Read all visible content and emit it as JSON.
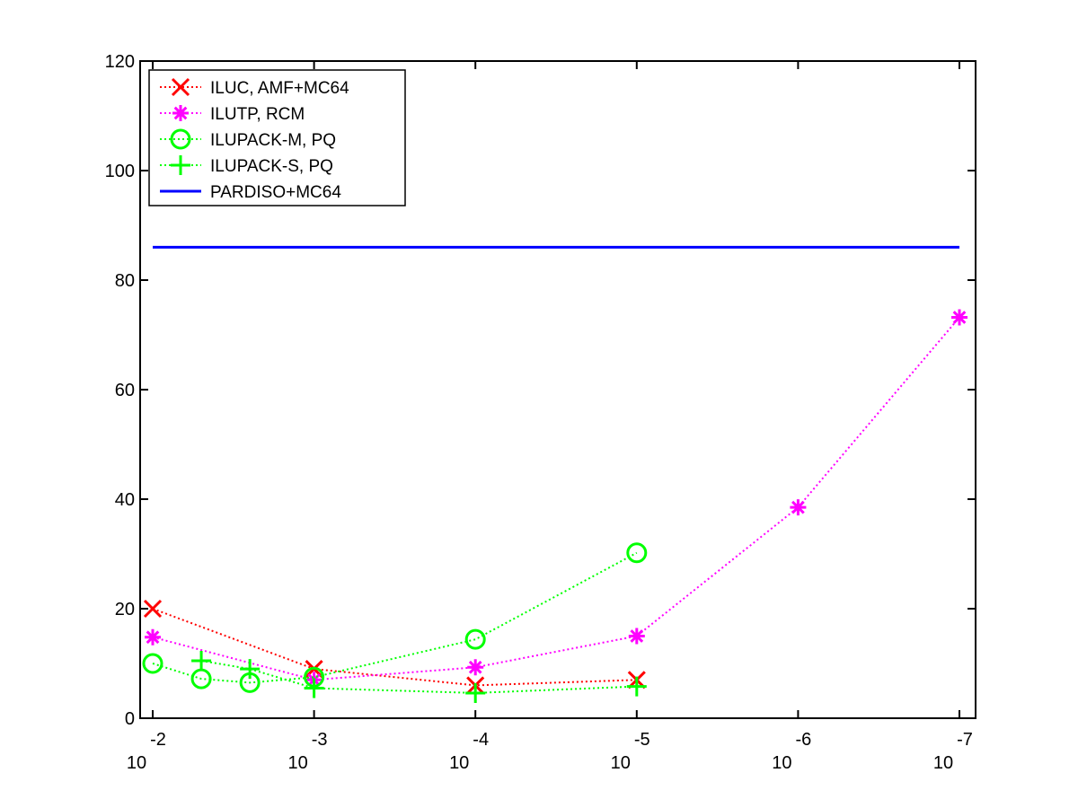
{
  "chart_data": {
    "type": "line",
    "title": "",
    "xlabel": "",
    "ylabel": "",
    "x_scale": "log-reversed",
    "xlim": [
      0.01,
      1e-07
    ],
    "ylim": [
      0,
      120
    ],
    "y_ticks": [
      0,
      20,
      40,
      60,
      80,
      100,
      120
    ],
    "x_ticks": [
      {
        "value": 0.01,
        "base": "10",
        "exp": "-2"
      },
      {
        "value": 0.001,
        "base": "10",
        "exp": "-3"
      },
      {
        "value": 0.0001,
        "base": "10",
        "exp": "-4"
      },
      {
        "value": 1e-05,
        "base": "10",
        "exp": "-5"
      },
      {
        "value": 1e-06,
        "base": "10",
        "exp": "-6"
      },
      {
        "value": 1e-07,
        "base": "10",
        "exp": "-7"
      }
    ],
    "grid": false,
    "legend_position": "top-left",
    "series": [
      {
        "name": "ILUC, AMF+MC64",
        "color": "#ff0000",
        "marker": "x",
        "line": "dotted",
        "points": [
          [
            0.01,
            20.0
          ],
          [
            0.001,
            9.0
          ],
          [
            0.0001,
            6.0
          ],
          [
            1e-05,
            7.0
          ]
        ]
      },
      {
        "name": "ILUTP, RCM",
        "color": "#ff00ff",
        "marker": "star",
        "line": "dotted",
        "points": [
          [
            0.01,
            14.8
          ],
          [
            0.001,
            7.0
          ],
          [
            0.0001,
            9.3
          ],
          [
            1e-05,
            15.0
          ],
          [
            1e-06,
            38.5
          ],
          [
            1e-07,
            73.2
          ]
        ]
      },
      {
        "name": "ILUPACK-M, PQ",
        "color": "#00ff00",
        "marker": "circle",
        "line": "dotted",
        "points": [
          [
            0.01,
            10.0
          ],
          [
            0.005,
            7.2
          ],
          [
            0.0025,
            6.5
          ],
          [
            0.001,
            7.5
          ],
          [
            0.0001,
            14.4
          ],
          [
            1e-05,
            30.2
          ]
        ]
      },
      {
        "name": "ILUPACK-S, PQ",
        "color": "#00ff00",
        "marker": "plus",
        "line": "dotted",
        "points": [
          [
            0.005,
            10.5
          ],
          [
            0.0025,
            9.0
          ],
          [
            0.001,
            5.5
          ],
          [
            0.0001,
            4.6
          ],
          [
            1e-05,
            5.8
          ]
        ]
      },
      {
        "name": "PARDISO+MC64",
        "color": "#0000ff",
        "marker": "none",
        "line": "solid",
        "points": [
          [
            0.01,
            86.0
          ],
          [
            1e-07,
            86.0
          ]
        ]
      }
    ]
  }
}
